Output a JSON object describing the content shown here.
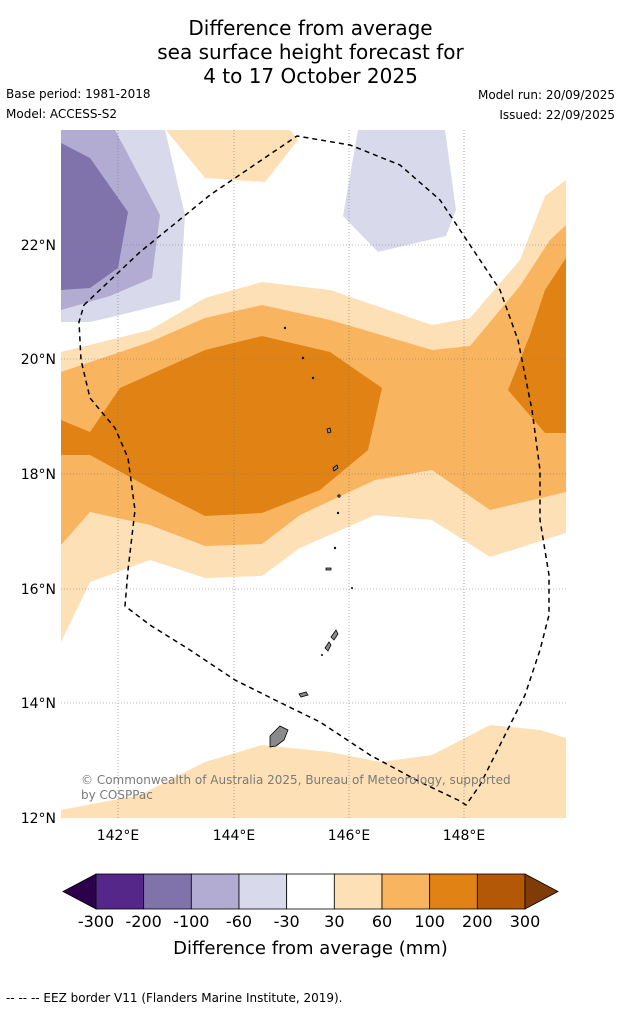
{
  "title": {
    "line1": "Difference from average",
    "line2": "sea surface height forecast for",
    "line3": "4 to 17 October 2025"
  },
  "meta": {
    "base_period": "Base period: 1981-2018",
    "model": "Model: ACCESS-S2",
    "model_run": "Model run: 20/09/2025",
    "issued": "Issued: 22/09/2025"
  },
  "map": {
    "lat_labels": [
      "22°N",
      "20°N",
      "18°N",
      "16°N",
      "14°N",
      "12°N"
    ],
    "lon_labels": [
      "142°E",
      "144°E",
      "146°E",
      "148°E"
    ],
    "copyright": "© Commonwealth of Australia 2025, Bureau of Meteorology, supported by COSPPac",
    "copyright_line1": "© Commonwealth of Australia 2025, Bureau of Meteorology, supported",
    "copyright_line2": "by COSPPac"
  },
  "colorbar": {
    "title": "Difference from average (mm)",
    "ticks": [
      "-300",
      "-200",
      "-100",
      "-60",
      "-30",
      "30",
      "60",
      "100",
      "200",
      "300"
    ],
    "colors": [
      "#2d004b",
      "#542788",
      "#8073ac",
      "#b2abd2",
      "#d8daeb",
      "#ffffff",
      "#fee0b6",
      "#f9b45f",
      "#e08214",
      "#b35806",
      "#7f3b08"
    ]
  },
  "footer": {
    "legend": "--  --  -- EEZ border V11 (Flanders Marine Institute, 2019)."
  }
}
